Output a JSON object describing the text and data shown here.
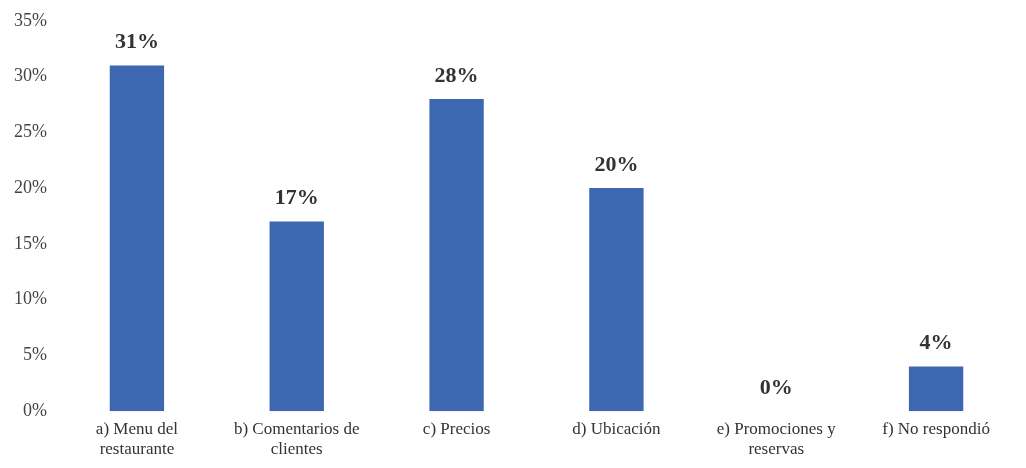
{
  "chart_data": {
    "type": "bar",
    "categories": [
      "a) Menu del restaurante",
      "b) Comentarios de clientes",
      "c) Precios",
      "d) Ubicación",
      "e) Promociones y reservas",
      "f) No respondió"
    ],
    "values": [
      31,
      17,
      28,
      20,
      0,
      4
    ],
    "value_labels": [
      "31%",
      "17%",
      "28%",
      "20%",
      "0%",
      "4%"
    ],
    "color": "#3d67b0",
    "ylim": [
      0,
      35
    ],
    "yticks": [
      {
        "value": 0,
        "label": "0%"
      },
      {
        "value": 5,
        "label": "5%"
      },
      {
        "value": 10,
        "label": "10%"
      },
      {
        "value": 15,
        "label": "15%"
      },
      {
        "value": 20,
        "label": "20%"
      },
      {
        "value": 25,
        "label": "25%"
      },
      {
        "value": 30,
        "label": "30%"
      },
      {
        "value": 35,
        "label": "35%"
      }
    ],
    "grid": false,
    "legend": false
  }
}
